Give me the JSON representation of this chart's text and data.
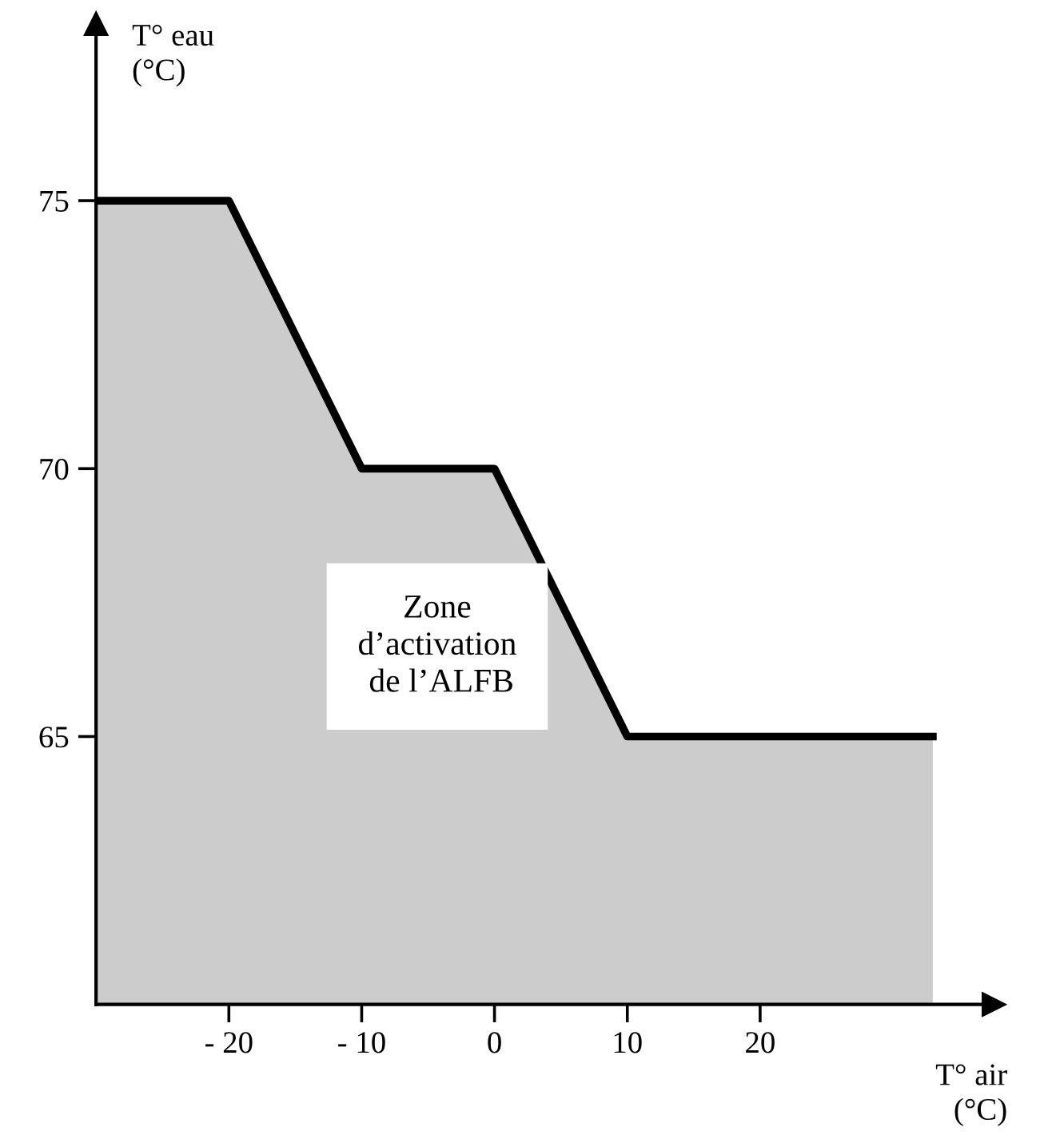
{
  "chart_data": {
    "type": "area",
    "xlabel": "T° air\n(°C)",
    "ylabel": "T° eau\n(°C)",
    "x": [
      -30,
      -20,
      -10,
      0,
      10,
      33
    ],
    "series": [
      {
        "color": "#000000",
        "values": [
          75,
          75,
          70,
          70,
          65,
          65
        ]
      }
    ],
    "xlim": [
      -30,
      37.6
    ],
    "ylim": [
      60,
      78.3
    ],
    "xticks": [
      {
        "value": -20,
        "label": "- 20"
      },
      {
        "value": -10,
        "label": "- 10"
      },
      0,
      10,
      20
    ],
    "yticks": [
      65,
      70,
      75
    ],
    "annotations": [
      "Zone\nd’activation\n de l’ALFB"
    ],
    "grid": false,
    "legend": false
  }
}
